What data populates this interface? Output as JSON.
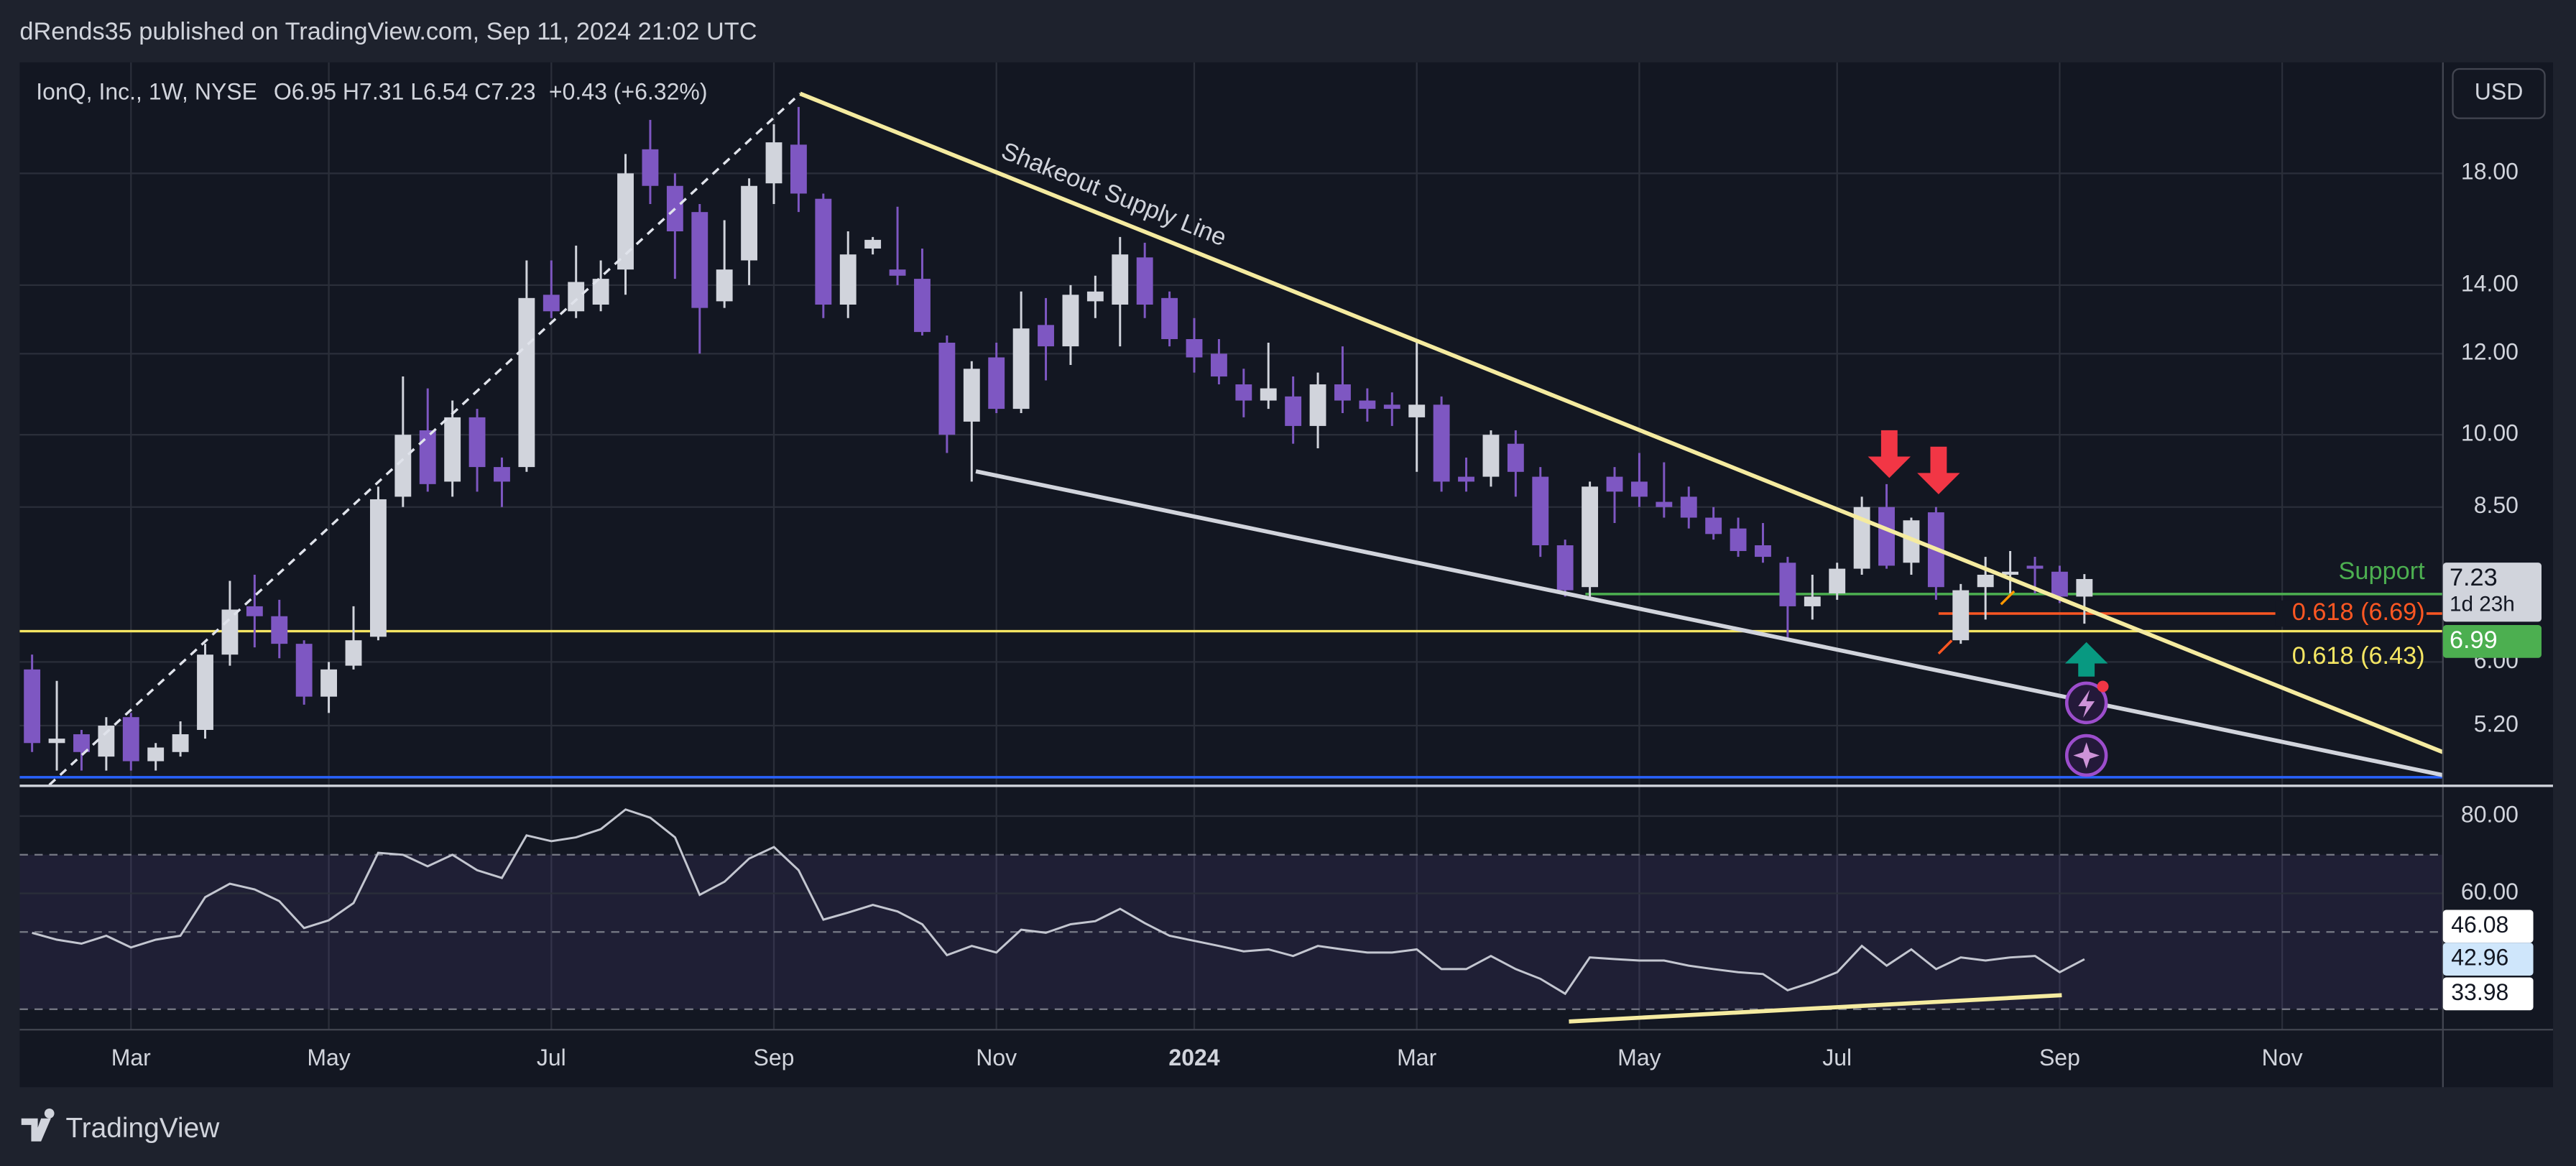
{
  "header": "dRends35 published on TradingView.com, Sep 11, 2024 21:02 UTC",
  "brand": "TradingView",
  "chart_data": {
    "type": "candlestick",
    "symbol": "IonQ, Inc., 1W, NYSE",
    "ohlc_text": "O6.95 H7.31 L6.54 C7.23",
    "change_text": "+0.43 (+6.32%)",
    "currency": "USD",
    "countdown": "1d 23h",
    "annotation": "Shakeout Supply Line",
    "log_scale": true,
    "grid": true,
    "up_color": "#d1d4dc",
    "down_color": "#7e57c2",
    "categories": [
      null,
      null,
      null,
      null,
      "Mar",
      null,
      null,
      null,
      null,
      null,
      null,
      null,
      "May",
      null,
      null,
      null,
      null,
      null,
      null,
      null,
      null,
      "Jul",
      null,
      null,
      null,
      null,
      null,
      null,
      null,
      null,
      "Sep",
      null,
      null,
      null,
      null,
      null,
      null,
      null,
      null,
      "Nov",
      null,
      null,
      null,
      null,
      null,
      null,
      null,
      "2024",
      null,
      null,
      null,
      null,
      null,
      null,
      null,
      null,
      "Mar",
      null,
      null,
      null,
      null,
      null,
      null,
      null,
      null,
      "May",
      null,
      null,
      null,
      null,
      null,
      null,
      null,
      "Jul",
      null,
      null,
      null,
      null,
      null,
      null,
      null,
      null,
      "Sep",
      null,
      null,
      null,
      null,
      null,
      null,
      null,
      null,
      "Nov",
      null,
      null,
      null,
      null,
      null,
      null
    ],
    "open": [
      5.9,
      5.0,
      5.1,
      4.85,
      5.3,
      4.8,
      4.9,
      5.15,
      6.1,
      6.8,
      6.65,
      6.25,
      5.55,
      5.95,
      6.35,
      8.7,
      10.1,
      9.0,
      10.4,
      9.3,
      9.3,
      13.7,
      13.2,
      13.4,
      14.5,
      19.0,
      17.5,
      16.5,
      13.5,
      14.8,
      17.6,
      19.2,
      17.0,
      13.4,
      15.2,
      14.5,
      14.2,
      12.3,
      10.3,
      11.9,
      10.6,
      12.8,
      12.2,
      13.5,
      13.4,
      14.9,
      13.6,
      12.4,
      12.0,
      11.2,
      10.8,
      10.9,
      10.2,
      11.2,
      10.8,
      10.7,
      10.4,
      10.7,
      9.1,
      9.1,
      9.8,
      9.1,
      7.8,
      7.1,
      9.1,
      9.0,
      8.6,
      8.7,
      8.3,
      8.1,
      7.8,
      7.5,
      6.8,
      7.0,
      7.4,
      8.5,
      7.5,
      8.4,
      6.3,
      7.1,
      7.3,
      7.45,
      7.35,
      6.95,
      null,
      null,
      null,
      null,
      null,
      null,
      null,
      null,
      null,
      null,
      null,
      null,
      null,
      null
    ],
    "high": [
      6.1,
      5.75,
      5.15,
      5.3,
      5.35,
      5.0,
      5.25,
      6.25,
      7.2,
      7.3,
      6.9,
      6.3,
      6.0,
      6.8,
      8.9,
      11.4,
      11.1,
      10.8,
      10.6,
      9.5,
      14.8,
      14.8,
      15.3,
      14.8,
      18.8,
      20.3,
      18.0,
      16.8,
      16.2,
      17.8,
      20.1,
      20.9,
      17.2,
      15.8,
      15.6,
      16.7,
      15.2,
      12.5,
      11.8,
      12.3,
      13.8,
      13.6,
      14.0,
      14.3,
      15.6,
      15.4,
      13.8,
      13.0,
      12.4,
      11.6,
      12.3,
      11.4,
      11.5,
      12.2,
      11.1,
      11.0,
      12.3,
      10.9,
      9.5,
      10.1,
      10.1,
      9.3,
      7.9,
      9.0,
      9.3,
      9.6,
      9.4,
      8.9,
      8.5,
      8.3,
      8.2,
      7.6,
      7.3,
      7.5,
      8.7,
      8.95,
      8.3,
      8.5,
      7.15,
      7.6,
      7.7,
      7.6,
      7.45,
      7.31,
      null,
      null,
      null,
      null,
      null,
      null,
      null,
      null,
      null,
      null,
      null,
      null,
      null,
      null
    ],
    "low": [
      4.9,
      4.7,
      4.7,
      4.7,
      4.7,
      4.7,
      4.85,
      5.05,
      5.95,
      6.2,
      6.05,
      5.45,
      5.35,
      5.9,
      6.3,
      8.5,
      8.8,
      8.7,
      8.8,
      8.5,
      9.2,
      13.0,
      13.0,
      13.2,
      13.7,
      16.8,
      14.2,
      12.0,
      13.3,
      14.0,
      16.8,
      16.5,
      13.0,
      13.0,
      15.0,
      14.0,
      12.5,
      9.6,
      9.0,
      10.5,
      10.5,
      11.3,
      11.7,
      13.0,
      12.2,
      13.0,
      12.2,
      11.5,
      11.2,
      10.4,
      10.6,
      9.8,
      9.7,
      10.5,
      10.3,
      10.2,
      9.2,
      8.8,
      8.8,
      8.9,
      8.7,
      7.6,
      6.95,
      6.9,
      8.2,
      8.5,
      8.3,
      8.1,
      7.9,
      7.6,
      7.5,
      6.3,
      6.6,
      6.9,
      7.3,
      7.4,
      7.3,
      6.9,
      6.25,
      6.6,
      7.0,
      7.0,
      6.85,
      6.54,
      null,
      null,
      null,
      null,
      null,
      null,
      null,
      null,
      null,
      null,
      null,
      null,
      null,
      null
    ],
    "close": [
      5.0,
      5.05,
      4.9,
      5.2,
      4.8,
      4.95,
      5.1,
      6.1,
      6.75,
      6.65,
      6.25,
      5.55,
      5.9,
      6.3,
      8.65,
      10.0,
      8.95,
      10.4,
      9.3,
      9.0,
      13.6,
      13.2,
      14.1,
      14.2,
      18.0,
      17.5,
      15.8,
      13.3,
      14.5,
      17.5,
      19.3,
      17.2,
      13.4,
      15.0,
      15.5,
      14.3,
      12.6,
      10.0,
      11.6,
      10.6,
      12.7,
      12.2,
      13.7,
      13.8,
      15.0,
      13.4,
      12.4,
      11.9,
      11.4,
      10.8,
      11.1,
      10.2,
      11.2,
      10.8,
      10.6,
      10.6,
      10.7,
      9.0,
      9.0,
      10.0,
      9.2,
      7.8,
      7.05,
      8.9,
      8.8,
      8.7,
      8.5,
      8.3,
      8.0,
      7.7,
      7.6,
      6.8,
      6.95,
      7.4,
      8.5,
      7.45,
      8.25,
      7.1,
      7.05,
      7.3,
      7.35,
      7.4,
      6.95,
      7.23,
      null,
      null,
      null,
      null,
      null,
      null,
      null,
      null,
      null,
      null,
      null,
      null,
      null,
      null
    ],
    "ylim": [
      4.55,
      23.1
    ],
    "yticks": [
      {
        "value": 5.2,
        "label": "5.20"
      },
      {
        "value": 6,
        "label": "6.00"
      },
      {
        "value": 8.5,
        "label": "8.50"
      },
      {
        "value": 10,
        "label": "10.00"
      },
      {
        "value": 12,
        "label": "12.00"
      },
      {
        "value": 14,
        "label": "14.00"
      },
      {
        "value": 18,
        "label": "18.00"
      }
    ],
    "levels": [
      {
        "value": 6.99,
        "label": "Support",
        "badge": "6.99",
        "color": "#4caf50"
      },
      {
        "value": 6.69,
        "label": "0.618 (6.69)",
        "color": "#ff5722"
      },
      {
        "value": 6.43,
        "label": "0.618 (6.43)",
        "color": "#f5e663"
      },
      {
        "value": 4.63,
        "color": "#2962ff"
      }
    ],
    "rsi": {
      "values": [
        49.8,
        48,
        47,
        49,
        46,
        48,
        49,
        59,
        62.5,
        61,
        58,
        51,
        53,
        57.5,
        70.5,
        70,
        67,
        70,
        66,
        64,
        75,
        73.5,
        74.5,
        76.6,
        81.7,
        79.6,
        74.5,
        59.6,
        63,
        69,
        72,
        66,
        53.2,
        55,
        57,
        55.3,
        52,
        44,
        46.4,
        44.7,
        50.6,
        49.8,
        52,
        52.8,
        56,
        52.3,
        49,
        47.7,
        46.4,
        45,
        45.5,
        43.8,
        46.4,
        45.5,
        44.7,
        44.7,
        45.5,
        40.4,
        40.4,
        43.8,
        40.4,
        37.9,
        34,
        43.4,
        43,
        42.6,
        42.6,
        41.3,
        40.4,
        39.6,
        39.1,
        34.9,
        37,
        39.6,
        46.4,
        41.3,
        45.5,
        40.4,
        43.4,
        42.6,
        43.4,
        43.8,
        39.6,
        42.96,
        null,
        null,
        null,
        null,
        null,
        null,
        null,
        null,
        null,
        null,
        null,
        null,
        null,
        null
      ],
      "color": "#c3c6d0",
      "ylim": [
        24.7,
        87.2
      ],
      "yticks": [
        {
          "value": 60,
          "label": "60.00"
        },
        {
          "value": 80,
          "label": "80.00"
        }
      ],
      "levels": [
        70,
        50,
        30
      ],
      "markers": [
        46.08,
        42.96,
        33.98
      ],
      "marker_colors": [
        "#ffffff",
        "#cfe6fb",
        "#ffffff"
      ]
    }
  }
}
